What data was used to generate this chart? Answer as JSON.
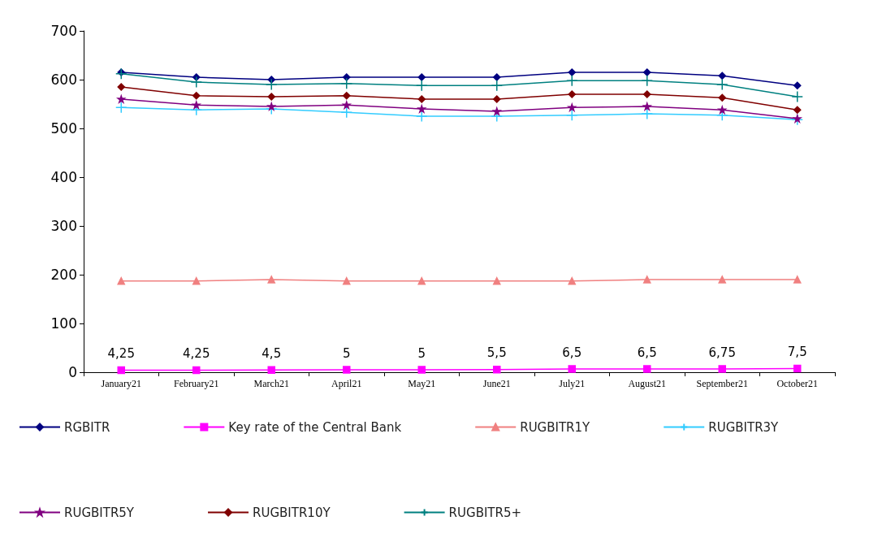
{
  "chart_data": {
    "type": "line",
    "categories": [
      "January21",
      "February21",
      "March21",
      "April21",
      "May21",
      "June21",
      "July21",
      "August21",
      "September21",
      "October21"
    ],
    "ylim": [
      0,
      700
    ],
    "yticks": [
      0,
      100,
      200,
      300,
      400,
      500,
      600,
      700
    ],
    "grid": false,
    "legend": "bottom",
    "series": [
      {
        "name": "RGBITR",
        "color": "#000080",
        "marker": "diamond",
        "values": [
          615,
          605,
          600,
          605,
          605,
          605,
          615,
          615,
          608,
          588
        ]
      },
      {
        "name": "Key rate of the Central Bank",
        "color": "#ff00ff",
        "marker": "square",
        "value_labels": [
          "4,25",
          "4,25",
          "4,5",
          "5",
          "5",
          "5,5",
          "6,5",
          "6,5",
          "6,75",
          "7,5"
        ],
        "values": [
          4.25,
          4.25,
          4.5,
          5,
          5,
          5.5,
          6.5,
          6.5,
          6.75,
          7.5
        ]
      },
      {
        "name": "RUGBITR1Y",
        "color": "#f08080",
        "marker": "triangle",
        "values": [
          187,
          187,
          190,
          187,
          187,
          187,
          187,
          190,
          190,
          190
        ]
      },
      {
        "name": "RUGBITR3Y",
        "color": "#33ccff",
        "marker": "cross",
        "values": [
          543,
          538,
          540,
          533,
          525,
          525,
          527,
          530,
          527,
          518
        ]
      },
      {
        "name": "RUGBITR5Y",
        "color": "#800080",
        "marker": "star",
        "values": [
          560,
          548,
          545,
          548,
          540,
          535,
          543,
          545,
          538,
          520
        ]
      },
      {
        "name": "RUGBITR10Y",
        "color": "#800000",
        "marker": "diamond",
        "values": [
          585,
          567,
          565,
          567,
          560,
          560,
          570,
          570,
          563,
          538
        ]
      },
      {
        "name": "RUGBITR5+",
        "color": "#008080",
        "marker": "cross",
        "values": [
          612,
          595,
          590,
          592,
          588,
          588,
          598,
          598,
          590,
          565
        ]
      }
    ]
  }
}
